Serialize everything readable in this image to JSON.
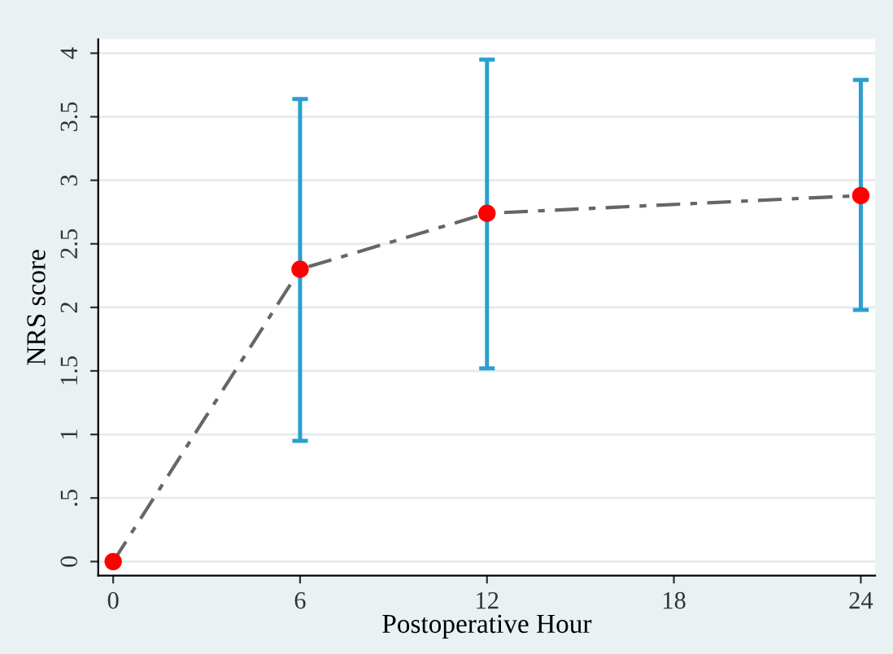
{
  "chart_data": {
    "type": "line",
    "xlabel": "Postoperative Hour",
    "ylabel": "NRS score",
    "x": [
      0,
      6,
      12,
      24
    ],
    "series": [
      {
        "color": "#666666",
        "values": [
          0,
          2.3,
          2.74,
          2.88
        ],
        "line_style": "dashed",
        "marker": "none"
      },
      {
        "type": "scatter",
        "color": "#ff0000",
        "values": [
          0,
          2.3,
          2.74,
          2.88
        ],
        "marker": "circle",
        "errors": [
          null,
          [
            0.95,
            3.64
          ],
          [
            1.52,
            3.95
          ],
          [
            1.98,
            3.79
          ]
        ]
      }
    ],
    "xlim": [
      -0.48,
      24.46
    ],
    "xticks": [
      0,
      6,
      12,
      18,
      24
    ],
    "ylim": [
      -0.11,
      4.11
    ],
    "yticks": [
      0,
      {
        "value": 0.5,
        "label": ".5"
      },
      1,
      1.5,
      2,
      2.5,
      3,
      3.5,
      4
    ],
    "grid": "y",
    "legend": false
  }
}
